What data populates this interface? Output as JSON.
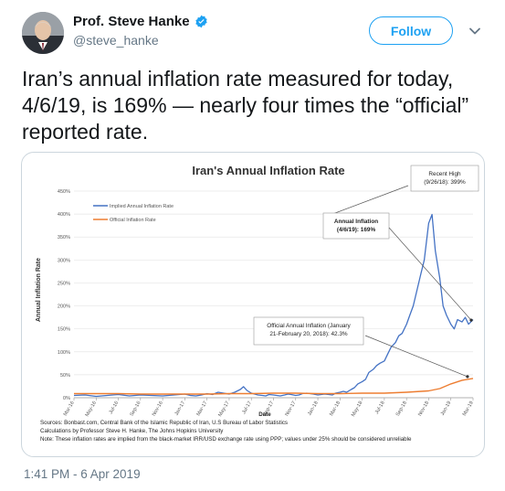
{
  "author": {
    "display_name": "Prof. Steve Hanke",
    "handle": "@steve_hanke",
    "verified": true
  },
  "actions": {
    "follow_label": "Follow",
    "menu_icon": "chevron-down-icon"
  },
  "tweet": {
    "text": "Iran’s annual inflation rate measured for today, 4/6/19, is 169% — nearly four times the “official” reported rate.",
    "timestamp": "1:41 PM - 6 Apr 2019"
  },
  "colors": {
    "accent": "#1da1f2",
    "implied_series": "#4472c4",
    "official_series": "#ed7d31"
  },
  "chart_data": {
    "type": "line",
    "title": "Iran's Annual Inflation Rate",
    "ylabel": "Annual Inflation Rate",
    "xlabel": "Date",
    "ylim": [
      0,
      450
    ],
    "yticks": [
      "0%",
      "50%",
      "100%",
      "150%",
      "200%",
      "250%",
      "300%",
      "350%",
      "400%",
      "450%"
    ],
    "xticks": [
      "Mar-16",
      "May-16",
      "Jul-16",
      "Sep-16",
      "Nov-16",
      "Jan-17",
      "Mar-17",
      "May-17",
      "Jul-17",
      "Sep-17",
      "Nov-17",
      "Jan-18",
      "Mar-18",
      "May-18",
      "Jul-18",
      "Sep-18",
      "Nov-18",
      "Jan-19",
      "Mar-19"
    ],
    "legend": [
      "Implied Annual Inflation Rate",
      "Official Inflation Rate"
    ],
    "legend_position": "top-left",
    "series": [
      {
        "name": "Implied Annual Inflation Rate",
        "x": [
          0,
          1,
          2,
          3,
          4,
          5,
          6,
          7,
          8,
          9,
          10,
          10.5,
          11,
          11.5,
          12,
          12.5,
          13,
          13.5,
          14,
          14.5,
          15,
          15.3,
          15.6,
          16,
          16.3,
          16.6,
          17,
          17.3,
          17.6,
          18,
          18.3,
          18.6,
          19,
          19.3,
          19.6,
          20,
          20.3,
          20.6,
          21,
          21.3,
          21.6,
          22,
          22.3,
          22.6,
          23,
          23.3,
          23.6,
          24,
          24.3,
          24.6,
          25,
          25.3,
          25.6,
          26,
          26.3,
          26.6,
          27,
          27.3,
          27.6,
          28,
          28.3,
          28.6,
          29,
          29.3,
          29.6,
          30,
          30.3,
          30.6,
          31,
          31.3,
          31.6,
          32,
          32.3,
          32.6,
          33,
          33.3,
          33.6,
          34,
          34.3,
          34.6,
          35,
          35.3,
          35.6,
          36
        ],
        "y": [
          5,
          6,
          3,
          5,
          7,
          4,
          6,
          5,
          4,
          6,
          8,
          5,
          4,
          6,
          9,
          7,
          12,
          10,
          8,
          12,
          18,
          24,
          16,
          10,
          8,
          6,
          5,
          4,
          7,
          6,
          5,
          4,
          6,
          8,
          7,
          5,
          6,
          9,
          10,
          9,
          8,
          6,
          7,
          8,
          7,
          6,
          10,
          12,
          14,
          12,
          18,
          22,
          30,
          35,
          40,
          55,
          62,
          70,
          75,
          80,
          95,
          110,
          120,
          135,
          140,
          160,
          180,
          200,
          240,
          270,
          300,
          380,
          399,
          320,
          260,
          200,
          180,
          160,
          150,
          170,
          165,
          175,
          160,
          170
        ]
      },
      {
        "name": "Official Inflation Rate",
        "x": [
          0,
          2,
          4,
          6,
          8,
          10,
          12,
          14,
          16,
          18,
          20,
          22,
          24,
          26,
          28,
          30,
          32,
          33,
          34,
          35,
          36
        ],
        "y": [
          9,
          9,
          9,
          8,
          8,
          8,
          8,
          9,
          9,
          10,
          10,
          9,
          9,
          10,
          10,
          12,
          15,
          20,
          30,
          38,
          42
        ]
      }
    ],
    "annotations": [
      {
        "label": "Recent High (9/26/18): 399%"
      },
      {
        "label": "Annual Inflation (4/6/19): 169%"
      },
      {
        "label": "Official Annual Inflation (January 21-February 20, 2018): 42.3%"
      }
    ],
    "footnotes": [
      "Sources: Bonbast.com, Central Bank of the Islamic Republic of Iran, U.S Bureau of Labor Statistics",
      "Calculations by Professor Steve H. Hanke, The Johns Hopkins University",
      "Note: These inflation rates are implied from the black-market IRR/USD exchange rate using PPP; values under 25% should be considered unreliable"
    ]
  }
}
